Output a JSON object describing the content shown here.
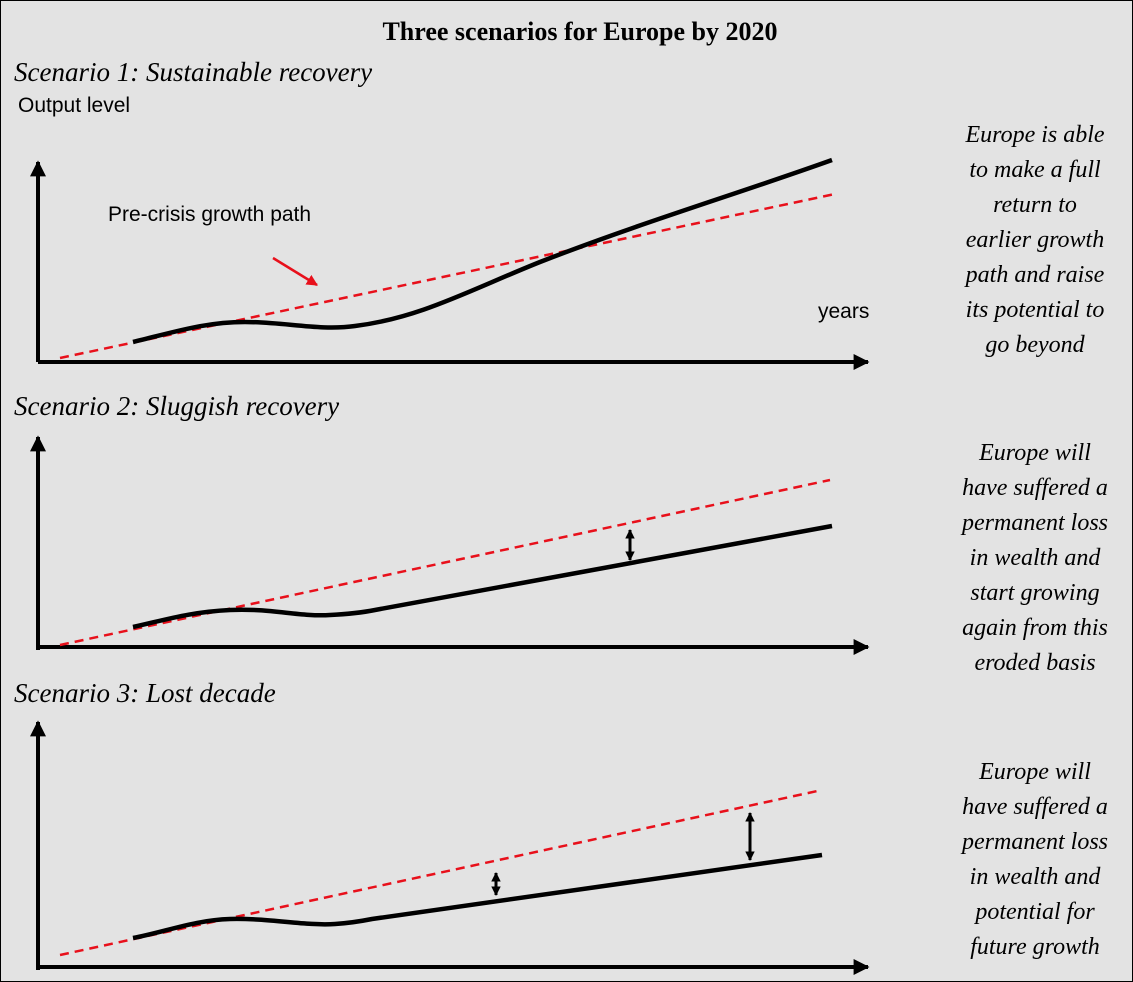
{
  "title": "Three scenarios for Europe by 2020",
  "y_axis_label": "Output level",
  "x_axis_label": "years",
  "trend_label": "Pre-crisis growth path",
  "colors": {
    "background": "#e3e3e3",
    "trend": "#e8101b",
    "output": "#000000",
    "pointer_arrow": "#e8101b"
  },
  "scenarios": [
    {
      "heading": "Scenario 1: Sustainable recovery",
      "description_lines": [
        "Europe is able",
        "to make a full",
        "return to",
        "earlier growth",
        "path and raise",
        "its potential to",
        "go beyond"
      ]
    },
    {
      "heading": "Scenario 2: Sluggish recovery",
      "description_lines": [
        "Europe will",
        "have suffered a",
        "permanent loss",
        "in wealth and",
        "start growing",
        "again from this",
        "eroded basis"
      ]
    },
    {
      "heading": "Scenario 3: Lost decade",
      "description_lines": [
        "Europe will",
        "have suffered a",
        "permanent loss",
        "in wealth and",
        "potential for",
        "future growth"
      ]
    }
  ]
}
